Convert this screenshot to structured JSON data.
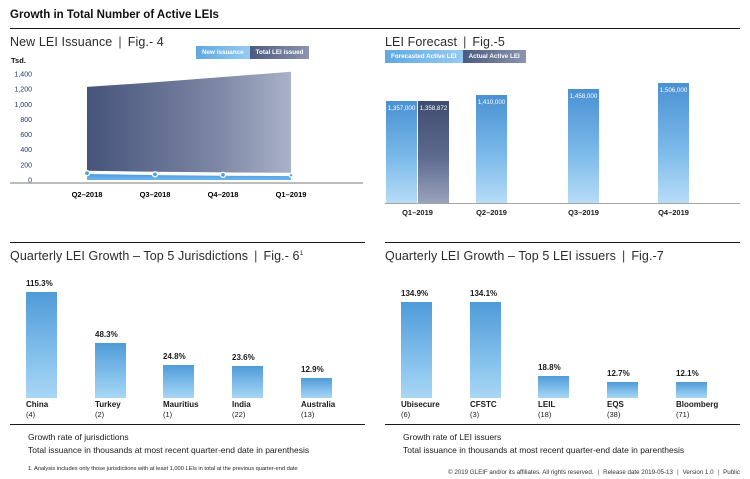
{
  "page": {
    "title": "Growth in Total Number of Active LEIs",
    "divider": "|",
    "footer_segments": [
      "© 2019 GLEIF and/or its affiliates. All rights reserved.",
      "Release date 2019-05-13",
      "Version 1.0",
      "Public"
    ]
  },
  "colors": {
    "accent_light_blue": "#4d9bd9",
    "accent_dark_slate": "#4a5878",
    "axis_text": "#1e3767",
    "axis_line": "#a6a6a6"
  },
  "fig4": {
    "title": "New LEI Issuance",
    "fig_label": "Fig.- 4",
    "y_unit": "Tsd.",
    "legend": [
      {
        "label": "New issuance"
      },
      {
        "label": "Total LEI issued"
      }
    ],
    "chart_data": {
      "type": "area",
      "categories": [
        "Q2–2018",
        "Q3–2018",
        "Q4–2018",
        "Q1–2019"
      ],
      "series": [
        {
          "name": "New issuance",
          "values": [
            90,
            75,
            68,
            62
          ]
        },
        {
          "name": "Total LEI issued",
          "values": [
            1230,
            1290,
            1360,
            1430
          ]
        }
      ],
      "ylabel": "Tsd.",
      "units": "thousands",
      "ylim": [
        0,
        1400
      ],
      "yticks": [
        {
          "value": 0,
          "label": "0"
        },
        {
          "value": 200,
          "label": "200"
        },
        {
          "value": 400,
          "label": "400"
        },
        {
          "value": 600,
          "label": "600"
        },
        {
          "value": 800,
          "label": "800"
        },
        {
          "value": 1000,
          "label": "1,000"
        },
        {
          "value": 1200,
          "label": "1,200"
        },
        {
          "value": 1400,
          "label": "1,400"
        }
      ],
      "grid": false,
      "legend_position": "top-right"
    }
  },
  "fig5": {
    "title": "LEI Forecast",
    "fig_label": "Fig.-5",
    "legend": [
      {
        "label": "Forecasted Active LEI"
      },
      {
        "label": "Actual Active LEI"
      }
    ],
    "chart_data": {
      "type": "bar",
      "categories": [
        "Q1–2019",
        "Q2–2019",
        "Q3–2019",
        "Q4–2019"
      ],
      "series": [
        {
          "name": "Forecasted Active LEI",
          "values": [
            1357000,
            1410000,
            1458000,
            1506000
          ],
          "labels": [
            "1,357,000",
            "1,410,000",
            "1,458,000",
            "1,506,000"
          ]
        },
        {
          "name": "Actual Active LEI",
          "values": [
            1358872,
            null,
            null,
            null
          ],
          "labels": [
            "1,358,872",
            null,
            null,
            null
          ]
        }
      ],
      "grid": false,
      "legend_position": "top-left"
    }
  },
  "fig6": {
    "title": "Quarterly LEI Growth – Top 5 Jurisdictions",
    "fig_label": "Fig.- 6",
    "fig_sup": "1",
    "chart_data": {
      "type": "bar",
      "categories": [
        "China",
        "Turkey",
        "Mauritius",
        "India",
        "Australia"
      ],
      "totals": [
        "(4)",
        "(2)",
        "(1)",
        "(22)",
        "(13)"
      ],
      "values": [
        115.3,
        48.3,
        24.8,
        23.6,
        12.9
      ],
      "value_labels": [
        "115.3%",
        "48.3%",
        "24.8%",
        "23.6%",
        "12.9%"
      ],
      "units": "percent growth",
      "grid": false
    },
    "notes": [
      "Growth rate of jurisdictions",
      "Total issuance in thousands at most recent quarter-end date in parenthesis"
    ],
    "footnote": "1. Analysis includes only those jurisdictions with at least 1,000 LEIs in total at the previous quarter-end date"
  },
  "fig7": {
    "title": "Quarterly LEI Growth – Top 5 LEI issuers",
    "fig_label": "Fig.-7",
    "chart_data": {
      "type": "bar",
      "categories": [
        "Ubisecure",
        "CFSTC",
        "LEIL",
        "EQS",
        "Bloomberg"
      ],
      "totals": [
        "(6)",
        "(3)",
        "(18)",
        "(38)",
        "(71)"
      ],
      "values": [
        134.9,
        134.1,
        18.8,
        12.7,
        12.1
      ],
      "value_labels": [
        "134.9%",
        "134.1%",
        "18.8%",
        "12.7%",
        "12.1%"
      ],
      "units": "percent growth",
      "grid": false
    },
    "notes": [
      "Growth rate of LEI issuers",
      "Total issuance in thousands at most recent quarter-end date in parenthesis"
    ]
  }
}
